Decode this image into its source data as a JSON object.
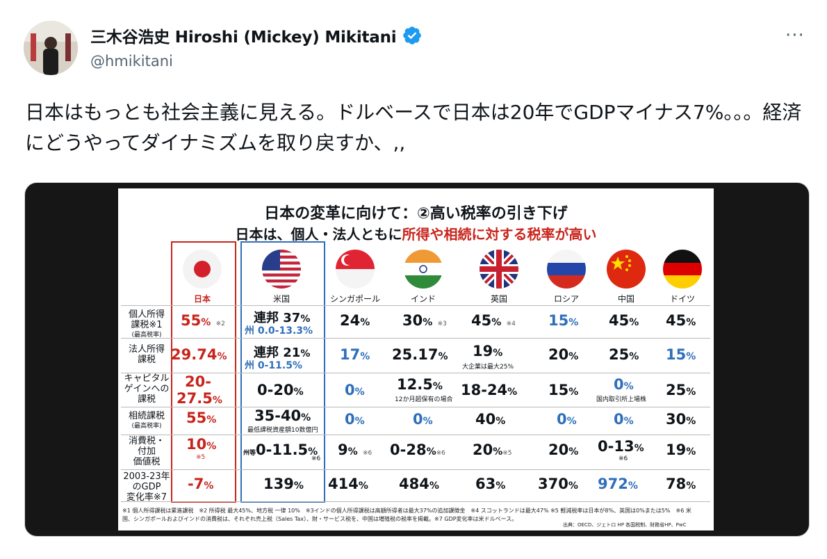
{
  "tweet": {
    "display_name": "三木谷浩史 Hiroshi (Mickey) Mikitani",
    "handle": "@hmikitani",
    "text": "日本はもっとも社会主義に見える。ドルベースで日本は20年でGDPマイナス7%。。。経済にどうやってダイナミズムを取り戻すか、,,",
    "more_label": "···"
  },
  "slide": {
    "title": "日本の変革に向けて：②高い税率の引き下げ",
    "subtitle_prefix": "日本は、個人・法人ともに",
    "subtitle_highlight": "所得や相続に対する税率が高い",
    "countries": [
      "日本",
      "米国",
      "シンガポール",
      "インド",
      "英国",
      "ロシア",
      "中国",
      "ドイツ"
    ],
    "row_labels": [
      {
        "line1": "個人所得",
        "line2": "課税※1",
        "line3": "(最高税率)"
      },
      {
        "line1": "法人所得",
        "line2": "課税",
        "line3": ""
      },
      {
        "line1": "キャピタル",
        "line2": "ゲインへの",
        "line3": "課税"
      },
      {
        "line1": "相続課税",
        "line2": "(最高税率)",
        "line3": ""
      },
      {
        "line1": "消費税・",
        "line2": "付加",
        "line3": "価値税"
      },
      {
        "line1": "2003-23年",
        "line2": "のGDP",
        "line3": "変化率※7"
      }
    ],
    "cells": {
      "r1": {
        "jp": "55",
        "jp_note": "※2",
        "us_main": "連邦 37",
        "us_sub": "州 0.0-13.3",
        "sg": "24",
        "in": "30",
        "in_note": "※3",
        "uk": "45",
        "uk_note": "※4",
        "ru": "15",
        "cn": "45",
        "de": "45"
      },
      "r2": {
        "jp": "29.74",
        "us_main": "連邦 21",
        "us_sub": "州 0-11.5",
        "sg": "17",
        "in": "25.17",
        "uk": "19",
        "uk_note": "大企業は最大25%",
        "ru": "20",
        "cn": "25",
        "de": "15"
      },
      "r3": {
        "jp_line1": "20-",
        "jp_line2": "27.5",
        "us": "0-20",
        "sg": "0",
        "in": "12.5",
        "in_note": "12か月超保有の場合",
        "uk": "18-24",
        "ru": "15",
        "cn": "0",
        "cn_note": "国内取引所上場株",
        "de": "25"
      },
      "r4": {
        "jp": "55",
        "us": "35-40",
        "us_note": "最低課税資産額10数億円",
        "sg": "0",
        "in": "0",
        "uk": "40",
        "ru": "0",
        "cn": "0",
        "de": "30"
      },
      "r5": {
        "jp": "10",
        "jp_note": "※5",
        "us_prefix": "州等",
        "us": "0-11.5",
        "us_note": "※6",
        "sg": "9",
        "sg_note": "※6",
        "in": "0-28",
        "in_note": "※6",
        "uk": "20",
        "uk_note": "※5",
        "ru": "20",
        "cn": "0-13",
        "cn_note": "※6",
        "de": "19"
      },
      "r6": {
        "jp": "-7",
        "us": "139",
        "sg": "414",
        "in": "484",
        "uk": "63",
        "ru": "370",
        "cn": "972",
        "de": "78"
      }
    },
    "pct": "%",
    "footnote": "※1 個人所得課税は累進課税　※2 所得税 最大45%、地方税 一律 10%　※3インドの個人所得課税は高額所得者は最大37%の追加課徴金　※4 スコットランドは最大47% ※5 軽減税率は日本が8%、英国は0%または5%　※6 米国、シンガポールおよびインドの消費税は、それぞれ売上税（Sales Tax）、財・サービス税を、中国は増殖税の税率を掲載。※7 GDP変化率は米ドルベース。",
    "source": "出典：OECD、ジェトロ HP 各国税制、財務省HP、PwC",
    "colors": {
      "japan_red": "#c8241b",
      "us_blue": "#2f6fba"
    }
  }
}
